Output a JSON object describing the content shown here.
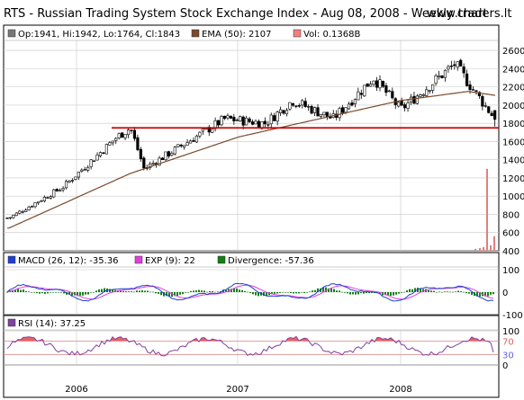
{
  "header": {
    "title": "RTS - Russian Trading System Stock Exchange Index - Aug 08, 2008 - Weekly chart",
    "watermark": "www.traders.lt"
  },
  "chart_data": [
    {
      "type": "candlestick",
      "panel": "price",
      "legend": {
        "ohlc": "Op:1941, Hi:1942, Lo:1764, Cl:1843",
        "ema": "EMA (50): 2107",
        "vol": "Vol: 0.1368B"
      },
      "ylim": [
        400,
        2680
      ],
      "yticks": [
        400,
        600,
        800,
        1000,
        1200,
        1400,
        1600,
        1800,
        2000,
        2200,
        2400,
        2600
      ],
      "support_level": 1750,
      "key_closes": [
        {
          "date": "2005-08",
          "close": 760
        },
        {
          "date": "2005-12",
          "close": 1100
        },
        {
          "date": "2006-04",
          "close": 1650
        },
        {
          "date": "2006-05",
          "close": 1750
        },
        {
          "date": "2006-06",
          "close": 1300
        },
        {
          "date": "2006-12",
          "close": 1850
        },
        {
          "date": "2007-03",
          "close": 1800
        },
        {
          "date": "2007-05",
          "close": 2050
        },
        {
          "date": "2007-08",
          "close": 1850
        },
        {
          "date": "2007-11",
          "close": 2300
        },
        {
          "date": "2008-01",
          "close": 1950
        },
        {
          "date": "2008-05",
          "close": 2450
        },
        {
          "date": "2008-08",
          "close": 1843
        }
      ],
      "ema_key": [
        {
          "date": "2005-08",
          "value": 650
        },
        {
          "date": "2006-05",
          "value": 1250
        },
        {
          "date": "2007-01",
          "value": 1650
        },
        {
          "date": "2008-01",
          "value": 2050
        },
        {
          "date": "2008-06",
          "value": 2150
        },
        {
          "date": "2008-08",
          "value": 2107
        }
      ],
      "colors": {
        "ema": "#7a4a2a",
        "volume": "#e08080",
        "support": "#cc0000"
      }
    },
    {
      "type": "line",
      "panel": "macd",
      "legend": {
        "macd": "MACD (26, 12): -35.36",
        "exp": "EXP (9): 22",
        "divergence": "Divergence: -57.36"
      },
      "ylim": [
        -100,
        100
      ],
      "yticks": [
        -100,
        0,
        100
      ],
      "colors": {
        "macd": "#1f3fd0",
        "exp": "#e040e0",
        "divergence": "#108010"
      }
    },
    {
      "type": "line",
      "panel": "rsi",
      "legend": {
        "rsi": "RSI (14): 37.25"
      },
      "ylim": [
        0,
        100
      ],
      "yticks": [
        0,
        30,
        70,
        100
      ],
      "levels": [
        30,
        70
      ],
      "colors": {
        "rsi": "#8040a0",
        "fill": "#f06060",
        "level": "#e08080"
      }
    }
  ],
  "x_axis": {
    "labels": [
      "2006",
      "2007",
      "2008"
    ]
  }
}
